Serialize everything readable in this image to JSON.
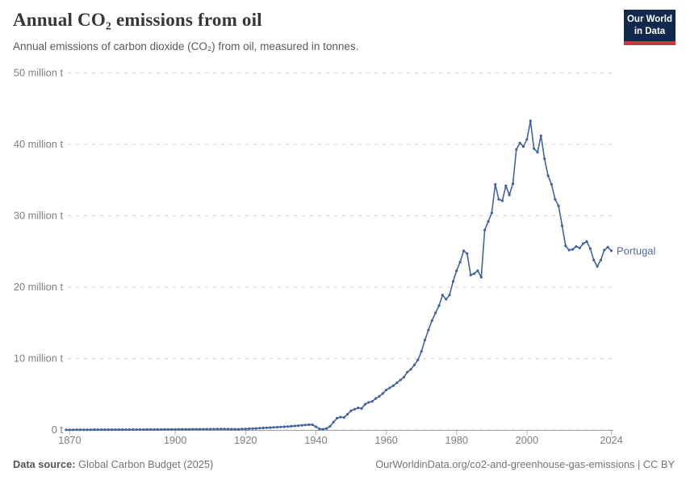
{
  "header": {
    "title": "Annual CO₂ emissions from oil",
    "subtitle": "Annual emissions of carbon dioxide (CO₂) from oil, measured in tonnes.",
    "logo": {
      "line1": "Our World",
      "line2": "in Data"
    }
  },
  "footer": {
    "source_label": "Data source:",
    "source_text": " Global Carbon Budget (2025)",
    "attribution": "OurWorldinData.org/co2-and-greenhouse-gas-emissions | CC BY"
  },
  "colors": {
    "series": "#43639c",
    "series_label": "#4d6ba6",
    "grid": "#d5d5d5",
    "axis": "#a3a3a3",
    "tick": "#b5b5b5",
    "tick_text": "#7f7f7f",
    "logo_bg": "#12294e",
    "logo_red": "#d0343d"
  },
  "chart_data": {
    "type": "line",
    "title": "Annual CO₂ emissions from oil",
    "entity_label": "Portugal",
    "unit": "tonnes",
    "grid": "horizontal dashed",
    "legend_position": "end-of-line label",
    "ylim": [
      0,
      50
    ],
    "xlim": [
      1869,
      2024
    ],
    "yticks": [
      {
        "value": 0,
        "label": "0 t"
      },
      {
        "value": 10,
        "label": "10 million t"
      },
      {
        "value": 20,
        "label": "20 million t"
      },
      {
        "value": 30,
        "label": "30 million t"
      },
      {
        "value": 40,
        "label": "40 million t"
      },
      {
        "value": 50,
        "label": "50 million t"
      }
    ],
    "xticks": [
      {
        "year": 1870,
        "label": "1870"
      },
      {
        "year": 1900,
        "label": "1900"
      },
      {
        "year": 1920,
        "label": "1920"
      },
      {
        "year": 1940,
        "label": "1940"
      },
      {
        "year": 1960,
        "label": "1960"
      },
      {
        "year": 1980,
        "label": "1980"
      },
      {
        "year": 2000,
        "label": "2000"
      },
      {
        "year": 2024,
        "label": "2024"
      }
    ],
    "years": [
      1869,
      1870,
      1871,
      1872,
      1873,
      1874,
      1875,
      1876,
      1877,
      1878,
      1879,
      1880,
      1881,
      1882,
      1883,
      1884,
      1885,
      1886,
      1887,
      1888,
      1889,
      1890,
      1891,
      1892,
      1893,
      1894,
      1895,
      1896,
      1897,
      1898,
      1899,
      1900,
      1901,
      1902,
      1903,
      1904,
      1905,
      1906,
      1907,
      1908,
      1909,
      1910,
      1911,
      1912,
      1913,
      1914,
      1915,
      1916,
      1917,
      1918,
      1919,
      1920,
      1921,
      1922,
      1923,
      1924,
      1925,
      1926,
      1927,
      1928,
      1929,
      1930,
      1931,
      1932,
      1933,
      1934,
      1935,
      1936,
      1937,
      1938,
      1939,
      1940,
      1941,
      1942,
      1943,
      1944,
      1945,
      1946,
      1947,
      1948,
      1949,
      1950,
      1951,
      1952,
      1953,
      1954,
      1955,
      1956,
      1957,
      1958,
      1959,
      1960,
      1961,
      1962,
      1963,
      1964,
      1965,
      1966,
      1967,
      1968,
      1969,
      1970,
      1971,
      1972,
      1973,
      1974,
      1975,
      1976,
      1977,
      1978,
      1979,
      1980,
      1981,
      1982,
      1983,
      1984,
      1985,
      1986,
      1987,
      1988,
      1989,
      1990,
      1991,
      1992,
      1993,
      1994,
      1995,
      1996,
      1997,
      1998,
      1999,
      2000,
      2001,
      2002,
      2003,
      2004,
      2005,
      2006,
      2007,
      2008,
      2009,
      2010,
      2011,
      2012,
      2013,
      2014,
      2015,
      2016,
      2017,
      2018,
      2019,
      2020,
      2021,
      2022,
      2023,
      2024
    ],
    "series": [
      {
        "name": "Portugal",
        "values": [
          0.02,
          0.02,
          0.02,
          0.03,
          0.03,
          0.03,
          0.03,
          0.03,
          0.04,
          0.04,
          0.04,
          0.04,
          0.04,
          0.05,
          0.05,
          0.05,
          0.05,
          0.05,
          0.06,
          0.06,
          0.06,
          0.06,
          0.06,
          0.07,
          0.07,
          0.07,
          0.07,
          0.07,
          0.08,
          0.08,
          0.08,
          0.08,
          0.09,
          0.09,
          0.09,
          0.09,
          0.1,
          0.1,
          0.1,
          0.1,
          0.11,
          0.11,
          0.11,
          0.12,
          0.12,
          0.12,
          0.11,
          0.11,
          0.1,
          0.1,
          0.13,
          0.15,
          0.17,
          0.19,
          0.22,
          0.25,
          0.28,
          0.3,
          0.33,
          0.36,
          0.4,
          0.42,
          0.45,
          0.48,
          0.52,
          0.56,
          0.6,
          0.65,
          0.7,
          0.73,
          0.74,
          0.45,
          0.15,
          0.1,
          0.2,
          0.5,
          1.1,
          1.65,
          1.8,
          1.75,
          2.2,
          2.7,
          2.9,
          3.1,
          3.0,
          3.6,
          3.85,
          4.0,
          4.4,
          4.7,
          5.1,
          5.6,
          5.9,
          6.2,
          6.6,
          7.0,
          7.4,
          8.1,
          8.5,
          9.1,
          9.8,
          11.0,
          12.6,
          14.0,
          15.3,
          16.4,
          17.4,
          18.9,
          18.3,
          18.9,
          20.8,
          22.3,
          23.5,
          25.1,
          24.7,
          21.7,
          21.9,
          22.3,
          21.4,
          28.0,
          29.2,
          30.4,
          34.4,
          32.3,
          32.1,
          34.2,
          32.9,
          34.5,
          39.3,
          40.2,
          39.7,
          40.7,
          43.3,
          39.4,
          38.9,
          41.2,
          38.0,
          35.6,
          34.4,
          32.3,
          31.4,
          28.6,
          25.8,
          25.2,
          25.3,
          25.7,
          25.5,
          26.1,
          26.4,
          25.4,
          23.8,
          22.9,
          23.8,
          25.2,
          25.6,
          25.1
        ]
      }
    ]
  }
}
